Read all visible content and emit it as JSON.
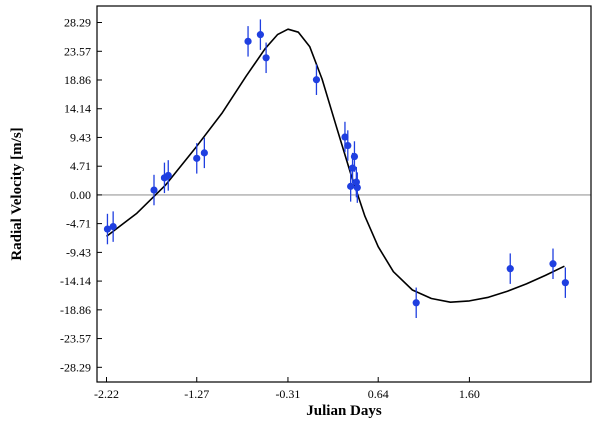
{
  "chart_data": {
    "type": "scatter",
    "title": "",
    "xlabel": "Julian Days",
    "ylabel": "Radial Velocity [m/s]",
    "xlim": [
      -2.32,
      2.88
    ],
    "ylim": [
      -30.7,
      31.0
    ],
    "x_ticks": [
      -2.22,
      -1.27,
      -0.31,
      0.64,
      1.6
    ],
    "x_tick_labels": [
      "-2.22",
      "-1.27",
      "-0.31",
      "0.64",
      "1.60"
    ],
    "y_ticks": [
      28.29,
      23.57,
      18.86,
      14.14,
      9.43,
      4.71,
      0.0,
      -4.71,
      -9.43,
      -14.14,
      -18.86,
      -23.57,
      -28.29
    ],
    "y_tick_labels": [
      "28.29",
      "23.57",
      "18.86",
      "14.14",
      "9.43",
      "4.71",
      "0.00",
      "-4.71",
      "-9.43",
      "-14.14",
      "-18.86",
      "-23.57",
      "-28.29"
    ],
    "grid": false,
    "zero_line": true,
    "colors": {
      "points": "#1f3fe0",
      "error_bars": "#1f3fe0",
      "fit_line": "#000000",
      "zero_line": "#9a9a9a"
    },
    "series": [
      {
        "kind": "points_with_errors",
        "points": [
          {
            "x": -2.21,
            "y": -5.6,
            "err": 2.5
          },
          {
            "x": -2.15,
            "y": -5.2,
            "err": 2.5
          },
          {
            "x": -1.72,
            "y": 0.8,
            "err": 2.5
          },
          {
            "x": -1.61,
            "y": 2.8,
            "err": 2.5
          },
          {
            "x": -1.57,
            "y": 3.2,
            "err": 2.5
          },
          {
            "x": -1.27,
            "y": 6.0,
            "err": 2.5
          },
          {
            "x": -1.19,
            "y": 6.9,
            "err": 2.5
          },
          {
            "x": -0.73,
            "y": 25.2,
            "err": 2.5
          },
          {
            "x": -0.6,
            "y": 26.3,
            "err": 2.5
          },
          {
            "x": -0.54,
            "y": 22.5,
            "err": 2.5
          },
          {
            "x": -0.01,
            "y": 18.9,
            "err": 2.5
          },
          {
            "x": 0.29,
            "y": 9.5,
            "err": 2.5
          },
          {
            "x": 0.32,
            "y": 8.1,
            "err": 2.5
          },
          {
            "x": 0.35,
            "y": 1.4,
            "err": 2.5
          },
          {
            "x": 0.37,
            "y": 4.4,
            "err": 2.5
          },
          {
            "x": 0.39,
            "y": 6.3,
            "err": 2.5
          },
          {
            "x": 0.41,
            "y": 2.1,
            "err": 2.5
          },
          {
            "x": 0.42,
            "y": 1.2,
            "err": 2.5
          },
          {
            "x": 1.04,
            "y": -17.7,
            "err": 2.5
          },
          {
            "x": 2.03,
            "y": -12.1,
            "err": 2.5
          },
          {
            "x": 2.48,
            "y": -11.3,
            "err": 2.5
          },
          {
            "x": 2.61,
            "y": -14.4,
            "err": 2.5
          }
        ]
      },
      {
        "kind": "fit_curve",
        "x": [
          -2.22,
          -1.9,
          -1.6,
          -1.27,
          -1.0,
          -0.75,
          -0.55,
          -0.42,
          -0.31,
          -0.2,
          -0.08,
          0.05,
          0.2,
          0.35,
          0.5,
          0.64,
          0.8,
          1.0,
          1.2,
          1.4,
          1.6,
          1.8,
          2.0,
          2.2,
          2.4,
          2.6
        ],
        "y": [
          -6.8,
          -3.0,
          1.6,
          8.0,
          13.5,
          19.5,
          24.0,
          26.3,
          27.2,
          26.7,
          24.3,
          19.0,
          11.2,
          3.5,
          -3.5,
          -8.5,
          -12.6,
          -15.6,
          -17.0,
          -17.6,
          -17.4,
          -16.8,
          -15.8,
          -14.6,
          -13.2,
          -11.7
        ]
      }
    ]
  }
}
